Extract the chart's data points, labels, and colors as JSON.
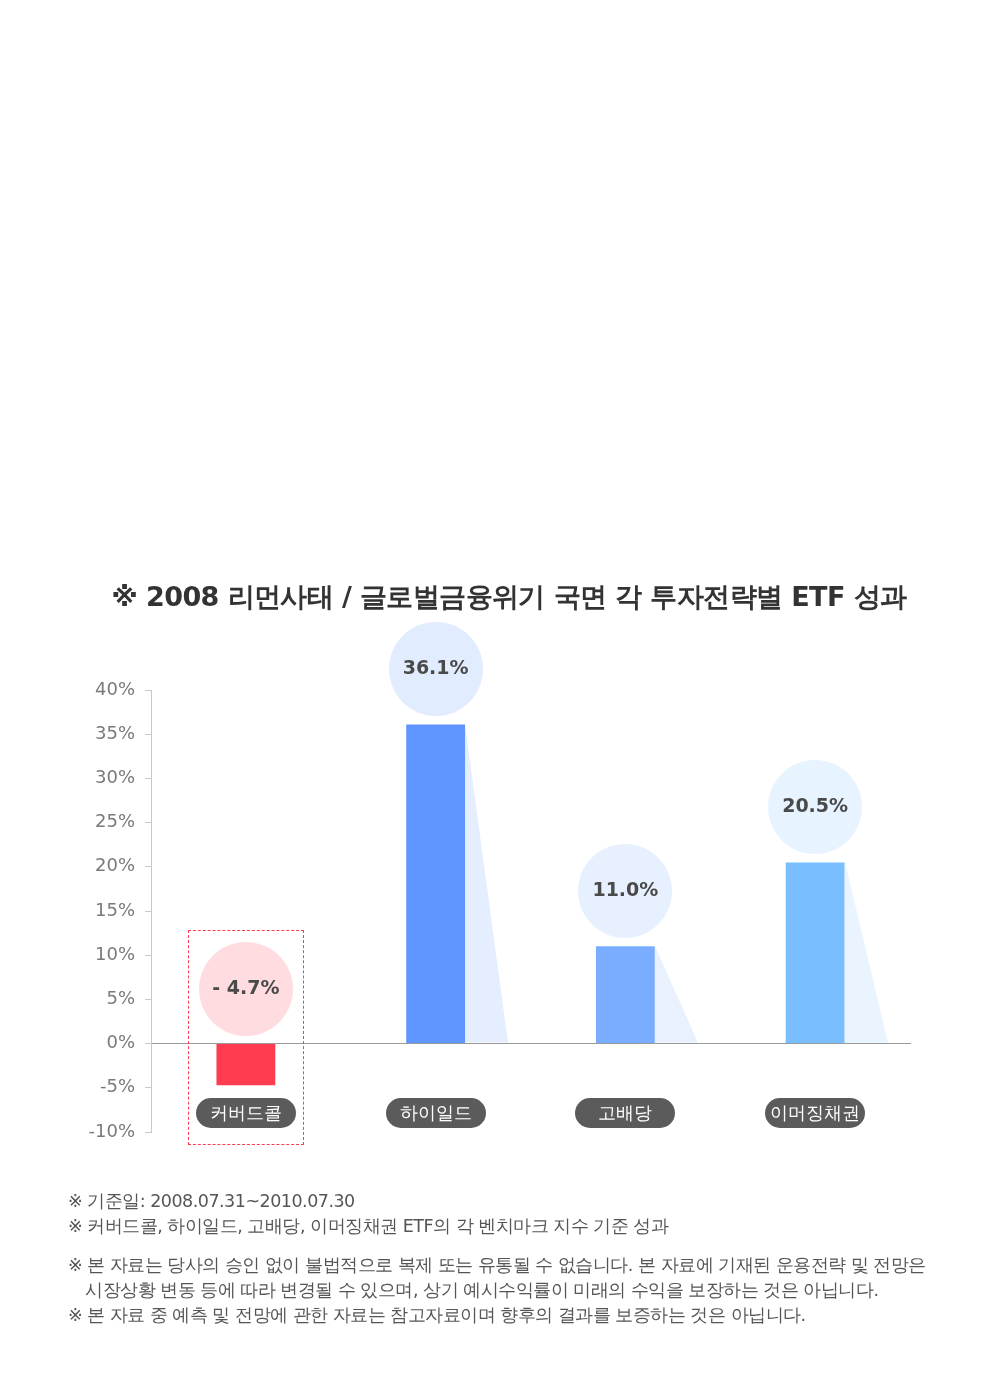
{
  "chart_data": {
    "type": "bar",
    "title": "※ 2008 리먼사태 / 글로벌금융위기 국면 각 투자전략별 ETF 성과",
    "categories": [
      "커버드콜",
      "하이일드",
      "고배당",
      "이머징채권"
    ],
    "values": [
      -4.7,
      36.1,
      11.0,
      20.5
    ],
    "colors": [
      "#ff3b4f",
      "#6096ff",
      "#7aacff",
      "#79bfff"
    ],
    "value_labels": [
      "- 4.7%",
      "36.1%",
      "11.0%",
      "20.5%"
    ],
    "ylim": [
      -10,
      40
    ],
    "yticks": [
      {
        "value": -10,
        "label": "-10%"
      },
      {
        "value": -5,
        "label": "-5%"
      },
      {
        "value": 0,
        "label": "0%"
      },
      {
        "value": 5,
        "label": "5%"
      },
      {
        "value": 10,
        "label": "10%"
      },
      {
        "value": 15,
        "label": "15%"
      },
      {
        "value": 20,
        "label": "20%"
      },
      {
        "value": 25,
        "label": "25%"
      },
      {
        "value": 30,
        "label": "30%"
      },
      {
        "value": 35,
        "label": "35%"
      },
      {
        "value": 40,
        "label": "40%"
      }
    ],
    "annotations": [
      "※ 기준일: 2008.07.31~2010.07.30",
      "※ 커버드콜, 하이일드, 고배당, 이머징채권 ETF의 각 벤치마크 지수 기준 성과",
      "※ 본 자료는 당사의 승인 없이 불법적으로 복제 또는 유통될 수 없습니다. 본 자료에 기재된 운용전략 및 전망은 시장상황 변동 등에 따라 변경될 수 있으며, 상기 예시수익률이 미래의 수익을 보장하는 것은 아닙니다.",
      "※ 본 자료 중 예측 및 전망에 관한 자료는 참고자료이며 향후의 결과를 보증하는 것은 아닙니다."
    ]
  }
}
